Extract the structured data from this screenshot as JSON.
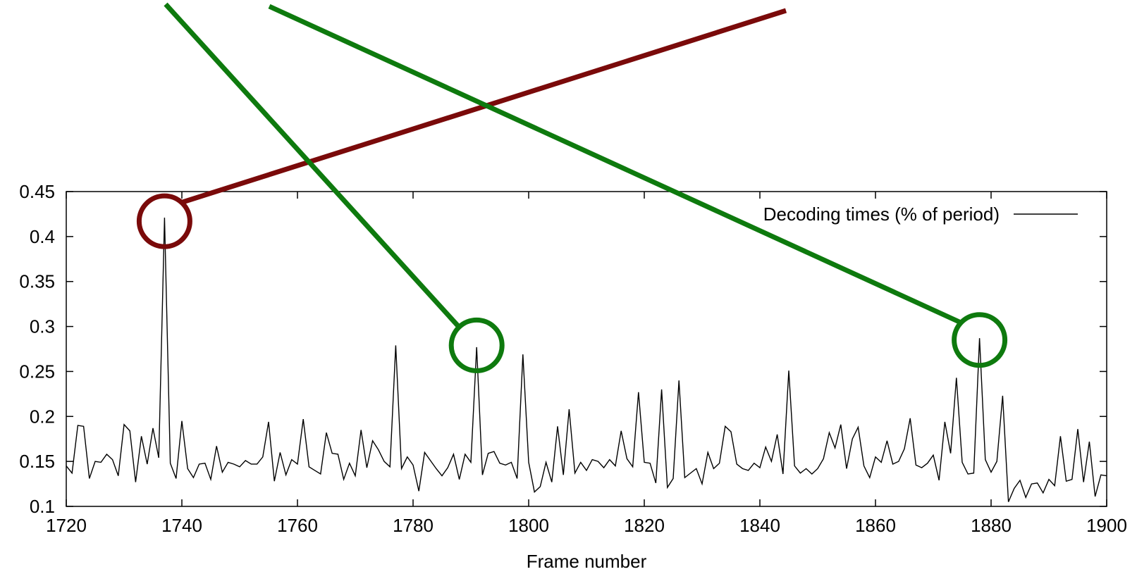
{
  "chart_data": {
    "type": "line",
    "title": "",
    "xlabel": "Frame number",
    "ylabel": "",
    "xlim": [
      1720,
      1900
    ],
    "ylim": [
      0.1,
      0.45
    ],
    "x_ticks": [
      "1720",
      "1740",
      "1760",
      "1780",
      "1800",
      "1820",
      "1840",
      "1860",
      "1880",
      "1900"
    ],
    "y_ticks": [
      "0.1",
      "0.15",
      "0.2",
      "0.25",
      "0.3",
      "0.35",
      "0.4",
      "0.45"
    ],
    "grid": false,
    "legend_position": "top-right",
    "series": [
      {
        "name": "Decoding times (% of period)",
        "color": "#000000",
        "x": [
          1720,
          1721,
          1722,
          1723,
          1724,
          1725,
          1726,
          1727,
          1728,
          1729,
          1730,
          1731,
          1732,
          1733,
          1734,
          1735,
          1736,
          1737,
          1738,
          1739,
          1740,
          1741,
          1742,
          1743,
          1744,
          1745,
          1746,
          1747,
          1748,
          1749,
          1750,
          1751,
          1752,
          1753,
          1754,
          1755,
          1756,
          1757,
          1758,
          1759,
          1760,
          1761,
          1762,
          1763,
          1764,
          1765,
          1766,
          1767,
          1768,
          1769,
          1770,
          1771,
          1772,
          1773,
          1774,
          1775,
          1776,
          1777,
          1778,
          1779,
          1780,
          1781,
          1782,
          1783,
          1784,
          1785,
          1786,
          1787,
          1788,
          1789,
          1790,
          1791,
          1792,
          1793,
          1794,
          1795,
          1796,
          1797,
          1798,
          1799,
          1800,
          1801,
          1802,
          1803,
          1804,
          1805,
          1806,
          1807,
          1808,
          1809,
          1810,
          1811,
          1812,
          1813,
          1814,
          1815,
          1816,
          1817,
          1818,
          1819,
          1820,
          1821,
          1822,
          1823,
          1824,
          1825,
          1826,
          1827,
          1828,
          1829,
          1830,
          1831,
          1832,
          1833,
          1834,
          1835,
          1836,
          1837,
          1838,
          1839,
          1840,
          1841,
          1842,
          1843,
          1844,
          1845,
          1846,
          1847,
          1848,
          1849,
          1850,
          1851,
          1852,
          1853,
          1854,
          1855,
          1856,
          1857,
          1858,
          1859,
          1860,
          1861,
          1862,
          1863,
          1864,
          1865,
          1866,
          1867,
          1868,
          1869,
          1870,
          1871,
          1872,
          1873,
          1874,
          1875,
          1876,
          1877,
          1878,
          1879,
          1880,
          1881,
          1882,
          1883,
          1884,
          1885,
          1886,
          1887,
          1888,
          1889,
          1890,
          1891,
          1892,
          1893,
          1894,
          1895,
          1896,
          1897,
          1898,
          1899,
          1900
        ],
        "y": [
          0.145,
          0.137,
          0.19,
          0.189,
          0.131,
          0.15,
          0.149,
          0.158,
          0.152,
          0.134,
          0.191,
          0.184,
          0.127,
          0.178,
          0.147,
          0.187,
          0.154,
          0.421,
          0.148,
          0.131,
          0.195,
          0.142,
          0.132,
          0.147,
          0.148,
          0.13,
          0.167,
          0.138,
          0.149,
          0.147,
          0.144,
          0.151,
          0.147,
          0.147,
          0.155,
          0.194,
          0.128,
          0.16,
          0.135,
          0.152,
          0.147,
          0.197,
          0.144,
          0.14,
          0.136,
          0.182,
          0.159,
          0.158,
          0.13,
          0.148,
          0.134,
          0.185,
          0.143,
          0.173,
          0.163,
          0.15,
          0.144,
          0.279,
          0.142,
          0.155,
          0.146,
          0.117,
          0.16,
          0.151,
          0.142,
          0.134,
          0.143,
          0.158,
          0.13,
          0.158,
          0.149,
          0.277,
          0.135,
          0.159,
          0.161,
          0.148,
          0.146,
          0.149,
          0.131,
          0.269,
          0.149,
          0.116,
          0.122,
          0.149,
          0.127,
          0.189,
          0.135,
          0.208,
          0.137,
          0.149,
          0.14,
          0.152,
          0.15,
          0.143,
          0.152,
          0.145,
          0.184,
          0.153,
          0.144,
          0.227,
          0.149,
          0.148,
          0.126,
          0.23,
          0.121,
          0.131,
          0.24,
          0.132,
          0.137,
          0.142,
          0.125,
          0.16,
          0.142,
          0.148,
          0.189,
          0.183,
          0.147,
          0.142,
          0.14,
          0.148,
          0.143,
          0.166,
          0.15,
          0.18,
          0.136,
          0.251,
          0.145,
          0.137,
          0.142,
          0.136,
          0.142,
          0.153,
          0.182,
          0.165,
          0.191,
          0.142,
          0.175,
          0.188,
          0.145,
          0.132,
          0.155,
          0.149,
          0.173,
          0.147,
          0.15,
          0.164,
          0.198,
          0.146,
          0.143,
          0.148,
          0.157,
          0.129,
          0.194,
          0.159,
          0.243,
          0.149,
          0.136,
          0.137,
          0.287,
          0.152,
          0.138,
          0.15,
          0.223,
          0.105,
          0.12,
          0.129,
          0.11,
          0.125,
          0.126,
          0.115,
          0.13,
          0.123,
          0.178,
          0.128,
          0.13,
          0.186,
          0.127,
          0.172,
          0.111,
          0.135,
          0.134
        ]
      }
    ],
    "annotations": [
      {
        "type": "circle",
        "color": "#7a0a0a",
        "x": 1737,
        "y": 0.417
      },
      {
        "type": "circle",
        "color": "#0e7a0e",
        "x": 1791,
        "y": 0.279
      },
      {
        "type": "circle",
        "color": "#0e7a0e",
        "x": 1878,
        "y": 0.285
      }
    ]
  }
}
